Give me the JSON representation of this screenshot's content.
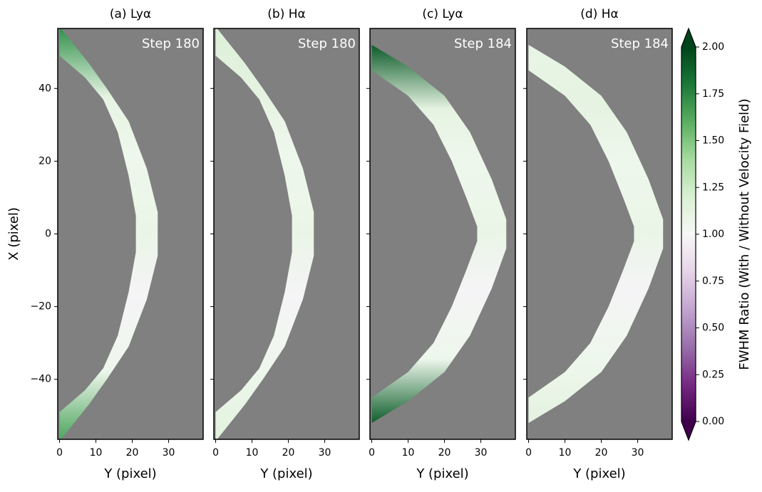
{
  "chart_data": [
    {
      "type": "image",
      "title": "(a) Lyα",
      "annotation": "Step 180",
      "xlabel": "Y (pixel)",
      "ylabel": "X (pixel)",
      "xlim": [
        -0.5,
        39.5
      ],
      "ylim": [
        -56.5,
        56.5
      ],
      "xticks": [
        0,
        10,
        20,
        30
      ],
      "yticks": [
        {
          "value": -40,
          "label": "−40"
        },
        {
          "value": -20,
          "label": "−20"
        },
        0,
        20,
        40
      ]
    },
    {
      "type": "image",
      "title": "(b) Hα",
      "annotation": "Step 180",
      "xlabel": "Y (pixel)",
      "xlim": [
        -0.5,
        39.5
      ],
      "ylim": [
        -56.5,
        56.5
      ],
      "xticks": [
        0,
        10,
        20,
        30
      ],
      "yticks": [
        -40,
        -20,
        0,
        20,
        40
      ]
    },
    {
      "type": "image",
      "title": "(c) Lyα",
      "annotation": "Step 184",
      "xlabel": "Y (pixel)",
      "xlim": [
        -0.5,
        39.5
      ],
      "ylim": [
        -56.5,
        56.5
      ],
      "xticks": [
        0,
        10,
        20,
        30
      ],
      "yticks": [
        -40,
        -20,
        0,
        20,
        40
      ]
    },
    {
      "type": "image",
      "title": "(d) Hα",
      "annotation": "Step 184",
      "xlabel": "Y (pixel)",
      "xlim": [
        -0.5,
        39.5
      ],
      "ylim": [
        -56.5,
        56.5
      ],
      "xticks": [
        0,
        10,
        20,
        30
      ],
      "yticks": [
        -40,
        -20,
        0,
        20,
        40
      ]
    },
    {
      "type": "colorbar",
      "label": "FWHM Ratio (With / Without Velocity Field)",
      "clim": [
        0,
        2
      ],
      "colormap": "PRGn",
      "extend": "both",
      "ticks": [
        {
          "value": 0,
          "label": "0.00"
        },
        {
          "value": 0.25,
          "label": "0.25"
        },
        {
          "value": 0.5,
          "label": "0.50"
        },
        {
          "value": 0.75,
          "label": "0.75"
        },
        {
          "value": 1,
          "label": "1.00"
        },
        {
          "value": 1.25,
          "label": "1.25"
        },
        {
          "value": 1.5,
          "label": "1.50"
        },
        {
          "value": 1.75,
          "label": "1.75"
        },
        {
          "value": 2,
          "label": "2.00"
        }
      ]
    }
  ]
}
